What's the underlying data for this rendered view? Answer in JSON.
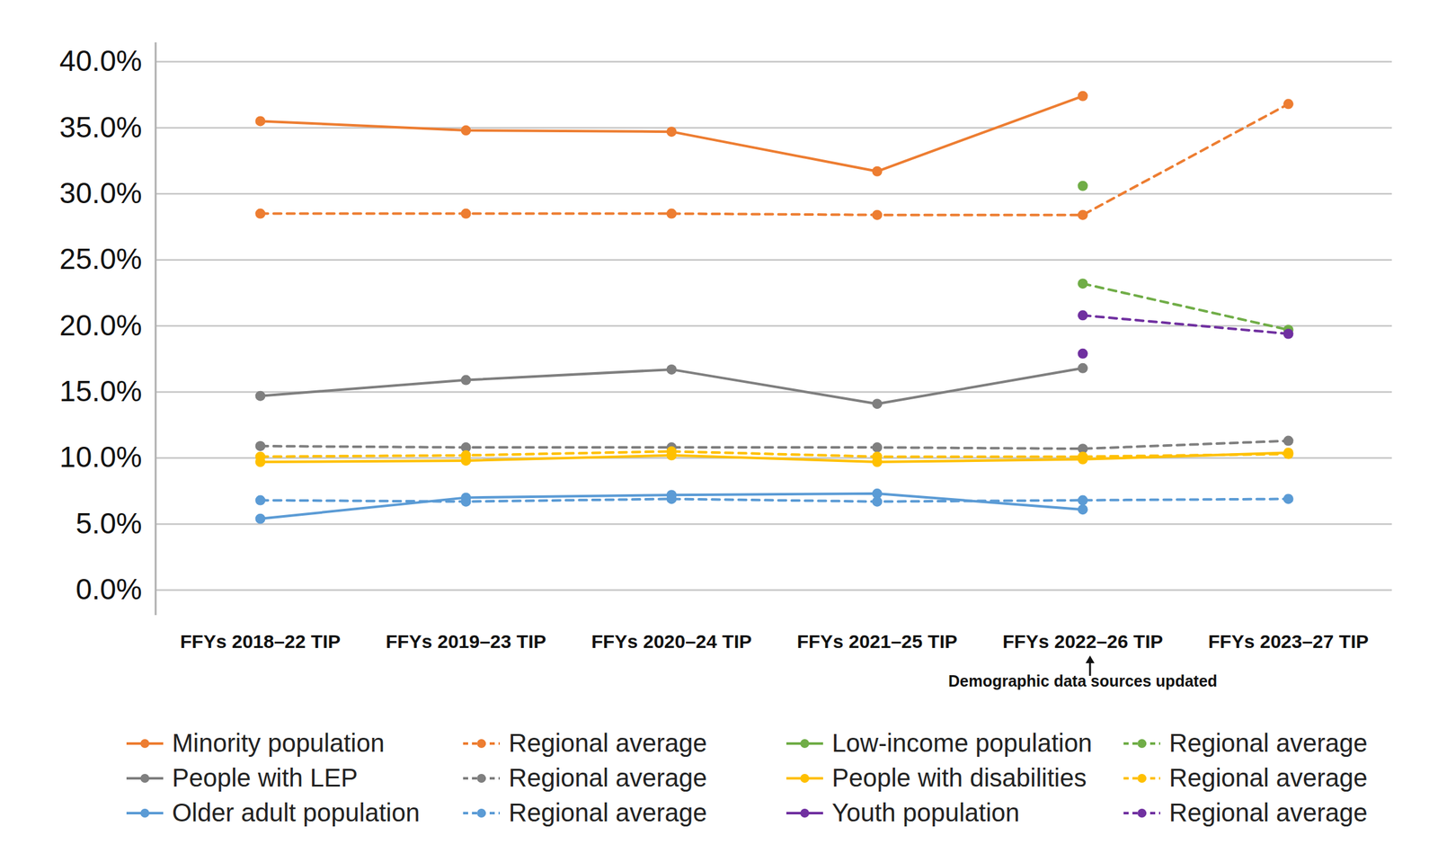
{
  "chart_data": {
    "type": "line",
    "categories": [
      "FFYs 2018–22 TIP",
      "FFYs 2019–23 TIP",
      "FFYs 2020–24 TIP",
      "FFYs 2021–25 TIP",
      "FFYs 2022–26 TIP",
      "FFYs 2023–27 TIP"
    ],
    "series": [
      {
        "name": "Minority population",
        "color": "#ED7D31",
        "line_style": "solid",
        "marker": "circle",
        "values": [
          35.5,
          34.8,
          34.7,
          31.7,
          37.4,
          null
        ]
      },
      {
        "name": "Regional average",
        "color": "#ED7D31",
        "line_style": "dashed",
        "marker": "circle",
        "values": [
          28.5,
          28.5,
          28.5,
          28.4,
          28.4,
          36.8
        ]
      },
      {
        "name": "Low-income population",
        "color": "#70AD47",
        "line_style": "solid",
        "marker": "circle",
        "values": [
          null,
          null,
          null,
          null,
          30.6,
          null
        ]
      },
      {
        "name": "Regional average",
        "color": "#70AD47",
        "line_style": "dashed",
        "marker": "circle",
        "values": [
          null,
          null,
          null,
          null,
          23.2,
          19.7
        ]
      },
      {
        "name": "People with LEP",
        "color": "#7F7F7F",
        "line_style": "solid",
        "marker": "circle",
        "values": [
          14.7,
          15.9,
          16.7,
          14.1,
          16.8,
          null
        ]
      },
      {
        "name": "Regional average",
        "color": "#7F7F7F",
        "line_style": "dashed",
        "marker": "circle",
        "values": [
          10.9,
          10.8,
          10.8,
          10.8,
          10.7,
          11.3
        ]
      },
      {
        "name": "People with disabilities",
        "color": "#FFC000",
        "line_style": "solid",
        "marker": "circle",
        "values": [
          9.7,
          9.8,
          10.2,
          9.7,
          9.9,
          10.4
        ]
      },
      {
        "name": "Regional average",
        "color": "#FFC000",
        "line_style": "dashed",
        "marker": "circle",
        "values": [
          10.1,
          10.2,
          10.5,
          10.1,
          10.1,
          10.3
        ]
      },
      {
        "name": "Older adult population",
        "color": "#5B9BD5",
        "line_style": "solid",
        "marker": "circle",
        "values": [
          5.4,
          7.0,
          7.2,
          7.3,
          6.1,
          null
        ]
      },
      {
        "name": "Regional average",
        "color": "#5B9BD5",
        "line_style": "dashed",
        "marker": "circle",
        "values": [
          6.8,
          6.7,
          6.9,
          6.7,
          6.8,
          6.9
        ]
      },
      {
        "name": "Youth population",
        "color": "#7030A0",
        "line_style": "solid",
        "marker": "circle",
        "values": [
          null,
          null,
          null,
          null,
          17.9,
          null
        ]
      },
      {
        "name": "Regional average",
        "color": "#7030A0",
        "line_style": "dashed",
        "marker": "circle",
        "values": [
          null,
          null,
          null,
          null,
          20.8,
          19.4
        ]
      }
    ],
    "ylim": [
      0,
      40
    ],
    "yticks": [
      {
        "value": 0,
        "label": "0.0%"
      },
      {
        "value": 5,
        "label": "5.0%"
      },
      {
        "value": 10,
        "label": "10.0%"
      },
      {
        "value": 15,
        "label": "15.0%"
      },
      {
        "value": 20,
        "label": "20.0%"
      },
      {
        "value": 25,
        "label": "25.0%"
      },
      {
        "value": 30,
        "label": "30.0%"
      },
      {
        "value": 35,
        "label": "35.0%"
      },
      {
        "value": 40,
        "label": "40.0%"
      }
    ],
    "grid": true,
    "legend": "bottom",
    "annotations": [
      {
        "text": "Demographic data sources updated",
        "x": "FFYs 2022–26 TIP"
      }
    ]
  }
}
